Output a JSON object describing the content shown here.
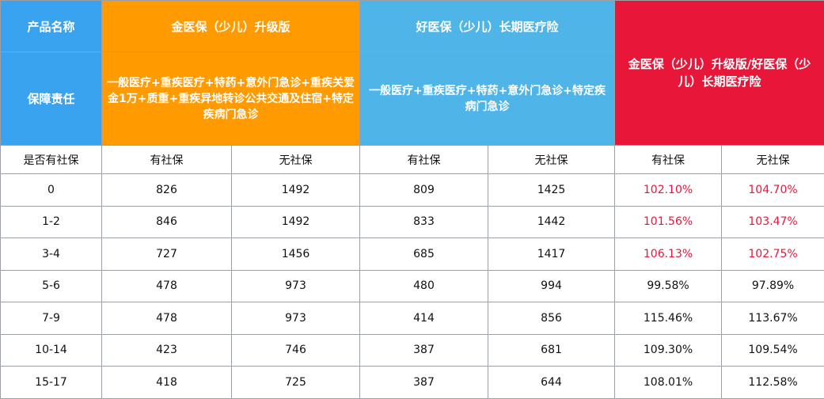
{
  "header": {
    "col_product_label": "产品名称",
    "product_a": "金医保（少儿）升级版",
    "product_b": "好医保（少儿）长期医疗险",
    "compare_title": "金医保（少儿）升级版/好医保（少儿）长期医疗险",
    "coverage_label": "保障责任",
    "coverage_a": "一般医疗+重疾医疗+特药+意外门急诊+重疾关爱金1万+质重+重疾异地转诊公共交通及住宿+特定疾病门急诊",
    "coverage_b": "一般医疗+重疾医疗+特药+意外门急诊+特定疾病门急诊"
  },
  "subheader": {
    "social_label": "是否有社保",
    "with": "有社保",
    "without": "无社保"
  },
  "rows": [
    {
      "age": "0",
      "a_with": "826",
      "a_without": "1492",
      "b_with": "809",
      "b_without": "1425",
      "r_with": "102.10%",
      "r_without": "104.70%"
    },
    {
      "age": "1-2",
      "a_with": "846",
      "a_without": "1492",
      "b_with": "833",
      "b_without": "1442",
      "r_with": "101.56%",
      "r_without": "103.47%"
    },
    {
      "age": "3-4",
      "a_with": "727",
      "a_without": "1456",
      "b_with": "685",
      "b_without": "1417",
      "r_with": "106.13%",
      "r_without": "102.75%"
    },
    {
      "age": "5-6",
      "a_with": "478",
      "a_without": "973",
      "b_with": "480",
      "b_without": "994",
      "r_with": "99.58%",
      "r_without": "97.89%"
    },
    {
      "age": "7-9",
      "a_with": "478",
      "a_without": "973",
      "b_with": "414",
      "b_without": "856",
      "r_with": "115.46%",
      "r_without": "113.67%"
    },
    {
      "age": "10-14",
      "a_with": "423",
      "a_without": "746",
      "b_with": "387",
      "b_without": "681",
      "r_with": "109.30%",
      "r_without": "109.54%"
    },
    {
      "age": "15-17",
      "a_with": "418",
      "a_without": "725",
      "b_with": "387",
      "b_without": "644",
      "r_with": "108.01%",
      "r_without": "112.58%"
    }
  ],
  "colors": {
    "label_blue": "#3aa3f0",
    "product_a_orange": "#ff9a00",
    "product_b_blue": "#4fb5e8",
    "compare_red": "#e8173a"
  }
}
